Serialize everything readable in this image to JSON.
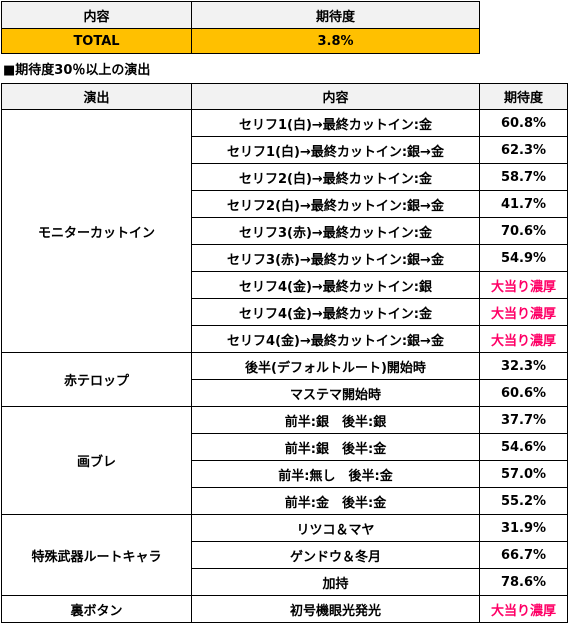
{
  "summary": {
    "headers": [
      "内容",
      "期待度"
    ],
    "row": {
      "content": "TOTAL",
      "expectation": "3.8%"
    },
    "colors": {
      "header_bg": "#f2f2f2",
      "total_bg": "#ffc000"
    }
  },
  "section_title": "■期待度30％以上の演出",
  "table": {
    "headers": [
      "演出",
      "内容",
      "期待度"
    ],
    "highlight_color": "#ff0066",
    "groups": [
      {
        "name": "モニターカットイン",
        "rows": [
          {
            "content": "セリフ1(白)→最終カットイン:金",
            "value": "60.8%"
          },
          {
            "content": "セリフ1(白)→最終カットイン:銀→金",
            "value": "62.3%"
          },
          {
            "content": "セリフ2(白)→最終カットイン:金",
            "value": "58.7%"
          },
          {
            "content": "セリフ2(白)→最終カットイン:銀→金",
            "value": "41.7%"
          },
          {
            "content": "セリフ3(赤)→最終カットイン:金",
            "value": "70.6%"
          },
          {
            "content": "セリフ3(赤)→最終カットイン:銀→金",
            "value": "54.9%"
          },
          {
            "content": "セリフ4(金)→最終カットイン:銀",
            "value": "大当り濃厚"
          },
          {
            "content": "セリフ4(金)→最終カットイン:金",
            "value": "大当り濃厚"
          },
          {
            "content": "セリフ4(金)→最終カットイン:銀→金",
            "value": "大当り濃厚"
          }
        ]
      },
      {
        "name": "赤テロップ",
        "rows": [
          {
            "content": "後半(デフォルトルート)開始時",
            "value": "32.3%"
          },
          {
            "content": "マステマ開始時",
            "value": "60.6%"
          }
        ]
      },
      {
        "name": "画ブレ",
        "rows": [
          {
            "content": "前半:銀　後半:銀",
            "value": "37.7%"
          },
          {
            "content": "前半:銀　後半:金",
            "value": "54.6%"
          },
          {
            "content": "前半:無し　後半:金",
            "value": "57.0%"
          },
          {
            "content": "前半:金　後半:金",
            "value": "55.2%"
          }
        ]
      },
      {
        "name": "特殊武器ルートキャラ",
        "rows": [
          {
            "content": "リツコ＆マヤ",
            "value": "31.9%"
          },
          {
            "content": "ゲンドウ＆冬月",
            "value": "66.7%"
          },
          {
            "content": "加持",
            "value": "78.6%"
          }
        ]
      },
      {
        "name": "裏ボタン",
        "rows": [
          {
            "content": "初号機眼光発光",
            "value": "大当り濃厚"
          }
        ]
      }
    ]
  }
}
